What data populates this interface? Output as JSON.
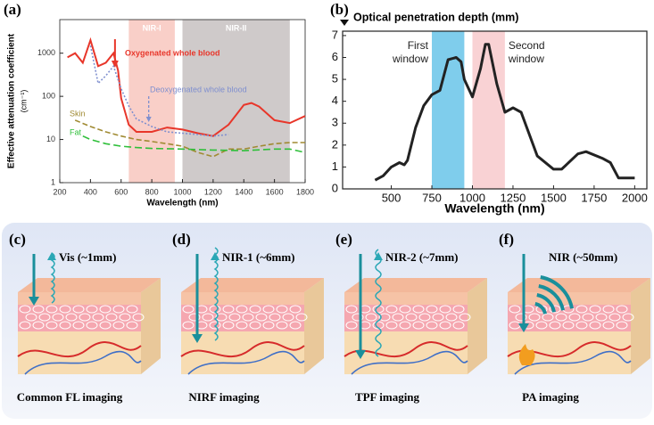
{
  "chart_data": [
    {
      "type": "line",
      "panel_label": "(a)",
      "ylabel": "Effective attenuation coefficient",
      "ylabel_unit": "(cm⁻¹)",
      "xlabel": "Wavelength (nm)",
      "xlim": [
        200,
        1800
      ],
      "xticks": [
        200,
        400,
        600,
        800,
        1000,
        1200,
        1400,
        1600,
        1800
      ],
      "ylim": [
        1,
        6000
      ],
      "yticks": [
        1,
        10,
        100,
        1000
      ],
      "log_y": true,
      "bands": [
        {
          "label": "NIR-I",
          "range": [
            650,
            950
          ],
          "color": "#f9cfc8"
        },
        {
          "label": "NIR-II",
          "range": [
            1000,
            1700
          ],
          "color": "#cfcaca"
        }
      ],
      "series": [
        {
          "name": "Oxygenated whole blood",
          "color": "#e8362a",
          "dash": "none",
          "x": [
            250,
            300,
            350,
            400,
            450,
            500,
            550,
            580,
            600,
            650,
            700,
            800,
            900,
            1000,
            1100,
            1200,
            1300,
            1400,
            1450,
            1500,
            1600,
            1700,
            1800
          ],
          "values": [
            800,
            1000,
            600,
            2000,
            500,
            600,
            1000,
            400,
            90,
            22,
            15,
            15,
            19,
            17,
            14,
            12,
            22,
            63,
            70,
            58,
            28,
            24,
            35
          ]
        },
        {
          "name": "Deoxygenated whole blood",
          "color": "#7f8fcf",
          "dash": "2,2",
          "x": [
            400,
            450,
            500,
            550,
            600,
            650,
            700,
            800,
            900,
            1000,
            1100,
            1200,
            1300
          ],
          "values": [
            1500,
            200,
            300,
            500,
            150,
            60,
            30,
            20,
            15,
            14,
            13,
            12,
            13
          ]
        },
        {
          "name": "Skin",
          "color": "#a08a32",
          "dash": "6,3",
          "x": [
            300,
            400,
            500,
            600,
            700,
            800,
            900,
            1000,
            1100,
            1200,
            1300,
            1400,
            1500,
            1600,
            1700,
            1800
          ],
          "values": [
            28,
            20,
            15,
            12,
            10,
            9,
            8,
            7,
            5,
            4,
            6,
            6,
            7,
            8,
            8.5,
            8.5
          ]
        },
        {
          "name": "Fat",
          "color": "#2fbf3a",
          "dash": "8,4",
          "x": [
            350,
            400,
            500,
            600,
            700,
            800,
            1000,
            1200,
            1400,
            1600,
            1700,
            1800
          ],
          "values": [
            12,
            10,
            8,
            7,
            6.5,
            6.2,
            6,
            5.7,
            5.5,
            6,
            6,
            5
          ]
        }
      ]
    },
    {
      "type": "line",
      "panel_label": "(b)",
      "title": "Optical penetration depth (mm)",
      "xlabel": "Wavelength (nm)",
      "xlim": [
        200,
        2075
      ],
      "xticks": [
        500,
        750,
        1000,
        1250,
        1500,
        1750,
        2000
      ],
      "ylim": [
        0,
        7.2
      ],
      "yticks": [
        0,
        1,
        2,
        3,
        4,
        5,
        6,
        7
      ],
      "bands": [
        {
          "label": "First window",
          "range": [
            750,
            950
          ],
          "color": "#7fcdec"
        },
        {
          "label": "Second window",
          "range": [
            1000,
            1200
          ],
          "color": "#f9d2d4"
        }
      ],
      "color": "#222222",
      "x": [
        400,
        450,
        500,
        550,
        580,
        600,
        650,
        700,
        750,
        800,
        850,
        900,
        930,
        950,
        1000,
        1050,
        1080,
        1100,
        1150,
        1200,
        1250,
        1300,
        1400,
        1500,
        1550,
        1650,
        1700,
        1800,
        1850,
        1900,
        2000
      ],
      "values": [
        0.4,
        0.6,
        1.0,
        1.2,
        1.1,
        1.3,
        2.8,
        3.8,
        4.3,
        4.5,
        5.9,
        6.0,
        5.8,
        5.0,
        4.2,
        5.5,
        6.6,
        6.6,
        4.8,
        3.5,
        3.7,
        3.5,
        1.5,
        0.9,
        0.9,
        1.6,
        1.7,
        1.4,
        1.2,
        0.5,
        0.5
      ]
    }
  ],
  "illustrations": [
    {
      "label": "(c)",
      "caption": "Vis (~1mm)",
      "title": "Common FL imaging"
    },
    {
      "label": "(d)",
      "caption": "NIR-1 (~6mm)",
      "title": "NIRF imaging"
    },
    {
      "label": "(e)",
      "caption": "NIR-2 (~7mm)",
      "title": "TPF imaging"
    },
    {
      "label": "(f)",
      "caption": "NIR (~50mm)",
      "title": "PA imaging"
    }
  ]
}
